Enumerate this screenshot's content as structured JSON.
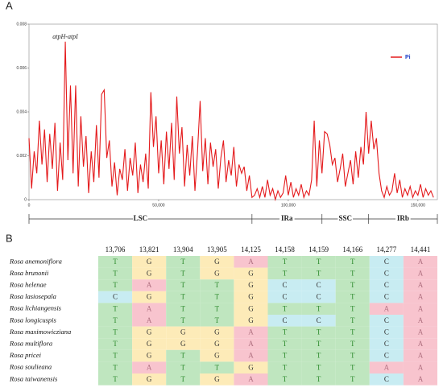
{
  "panels": [
    "A",
    "B"
  ],
  "chart_data": {
    "type": "line",
    "annotation": "atpH-atpI",
    "annotation_x": 14000,
    "xlim": [
      0,
      157500
    ],
    "ylim": [
      0,
      0.008
    ],
    "xticks": [
      0,
      {
        "value": 50000,
        "label": "50,000"
      },
      {
        "value": 100000,
        "label": "100,000"
      },
      {
        "value": 150000,
        "label": "150,000"
      }
    ],
    "yticks": [
      0,
      0.002,
      0.004,
      0.006,
      0.008
    ],
    "legend": "top-right",
    "x": [
      0,
      1000,
      2000,
      3000,
      4000,
      5000,
      6000,
      7000,
      8000,
      9000,
      10000,
      11000,
      12000,
      13000,
      14000,
      15000,
      16000,
      17000,
      18000,
      19000,
      20000,
      21000,
      22000,
      23000,
      24000,
      25000,
      26000,
      27000,
      28000,
      29000,
      30000,
      31000,
      32000,
      33000,
      34000,
      35000,
      36000,
      37000,
      38000,
      39000,
      40000,
      41000,
      42000,
      43000,
      44000,
      45000,
      46000,
      47000,
      48000,
      49000,
      50000,
      51000,
      52000,
      53000,
      54000,
      55000,
      56000,
      57000,
      58000,
      59000,
      60000,
      61000,
      62000,
      63000,
      64000,
      65000,
      66000,
      67000,
      68000,
      69000,
      70000,
      71000,
      72000,
      73000,
      74000,
      75000,
      76000,
      77000,
      78000,
      79000,
      80000,
      81000,
      82000,
      83000,
      84000,
      85000,
      86000,
      87000,
      88000,
      89000,
      90000,
      91000,
      92000,
      93000,
      94000,
      95000,
      96000,
      97000,
      98000,
      99000,
      100000,
      101000,
      102000,
      103000,
      104000,
      105000,
      106000,
      107000,
      108000,
      109000,
      110000,
      111000,
      112000,
      113000,
      114000,
      115000,
      116000,
      117000,
      118000,
      119000,
      120000,
      121000,
      122000,
      123000,
      124000,
      125000,
      126000,
      127000,
      128000,
      129000,
      130000,
      131000,
      132000,
      133000,
      134000,
      135000,
      136000,
      137000,
      138000,
      139000,
      140000,
      141000,
      142000,
      143000,
      144000,
      145000,
      146000,
      147000,
      148000,
      149000,
      150000,
      151000,
      152000,
      153000,
      154000,
      155000,
      156000
    ],
    "series": [
      {
        "name": "Pi",
        "color": "#e41a1c",
        "values": [
          0.0028,
          0.0005,
          0.0022,
          0.0012,
          0.0036,
          0.0016,
          0.0032,
          0.0008,
          0.003,
          0.0014,
          0.0035,
          0.0004,
          0.0026,
          0.0009,
          0.0072,
          0.0018,
          0.0052,
          0.0012,
          0.0052,
          0.0006,
          0.0038,
          0.0015,
          0.0029,
          0.0003,
          0.0022,
          0.0008,
          0.0034,
          0.001,
          0.0048,
          0.005,
          0.0019,
          0.0027,
          0.0006,
          0.0017,
          0.0002,
          0.0014,
          0.0009,
          0.0023,
          0.0004,
          0.0019,
          0.0011,
          0.0026,
          0.0003,
          0.0016,
          0.0008,
          0.0021,
          0.0005,
          0.0049,
          0.0024,
          0.0038,
          0.0012,
          0.0027,
          0.0007,
          0.0031,
          0.0014,
          0.0035,
          0.0009,
          0.0047,
          0.0021,
          0.0033,
          0.0006,
          0.0025,
          0.0011,
          0.0029,
          0.0004,
          0.0022,
          0.0045,
          0.0013,
          0.0028,
          0.0007,
          0.0026,
          0.0015,
          0.0023,
          0.0005,
          0.0019,
          0.0027,
          0.0008,
          0.0018,
          0.0011,
          0.0024,
          0.0006,
          0.0016,
          0.0012,
          0.0015,
          0.0004,
          0.0011,
          0.0001,
          0.0002,
          0.0005,
          0.0001,
          0.0006,
          0.0001,
          0.0009,
          0.0002,
          0.0005,
          0,
          0.0004,
          0.0001,
          0.0003,
          0.0011,
          0.0002,
          0.0008,
          0.0001,
          0.0005,
          0.0002,
          0.0007,
          0.0001,
          0.0004,
          0.0002,
          0.0009,
          0.0036,
          0.0006,
          0.0027,
          0.0012,
          0.0031,
          0.003,
          0.0025,
          0.0016,
          0.0019,
          0.0008,
          0.0014,
          0.0021,
          0.0006,
          0.0012,
          0.0018,
          0.0007,
          0.0022,
          0.001,
          0.0024,
          0.0016,
          0.004,
          0.0021,
          0.0036,
          0.0023,
          0.0028,
          0.0012,
          0.0004,
          0.0001,
          0.0006,
          0.0002,
          0.0004,
          0.0012,
          0.0003,
          0.0009,
          0.0001,
          0.0005,
          0.0002,
          0.0006,
          0.0001,
          0.0004,
          0.0002,
          0.0007,
          0.0001,
          0.0005,
          0.0002,
          0.0004,
          0.0001
        ]
      }
    ],
    "regions": [
      {
        "label": "LSC",
        "start": 0,
        "end": 86000
      },
      {
        "label": "IRa",
        "start": 86000,
        "end": 113000
      },
      {
        "label": "SSC",
        "start": 113000,
        "end": 131000
      },
      {
        "label": "IRb",
        "start": 131000,
        "end": 157500
      }
    ]
  },
  "table": {
    "columns": [
      "13,706",
      "13,821",
      "13,904",
      "13,905",
      "14,125",
      "14,158",
      "14,159",
      "14,166",
      "14,277",
      "14,441"
    ],
    "base_colors": {
      "T": "#bfe6bf",
      "G": "#fdebb8",
      "A": "#f8c4ce",
      "C": "#c8ecf2"
    },
    "base_text_colors": {
      "T": "#2e8b2e",
      "G": "#333333",
      "A": "#b07080",
      "C": "#333333"
    },
    "rows": [
      {
        "species": "Rosa anemoniflora",
        "bases": [
          "T",
          "G",
          "T",
          "G",
          "A",
          "T",
          "T",
          "T",
          "C",
          "A"
        ]
      },
      {
        "species": "Rosa brunonii",
        "bases": [
          "T",
          "G",
          "T",
          "G",
          "G",
          "T",
          "T",
          "T",
          "C",
          "A"
        ]
      },
      {
        "species": "Rosa helenae",
        "bases": [
          "T",
          "A",
          "T",
          "T",
          "G",
          "C",
          "C",
          "T",
          "C",
          "A"
        ]
      },
      {
        "species": "Rosa lasiosepala",
        "bases": [
          "C",
          "G",
          "T",
          "T",
          "G",
          "C",
          "C",
          "T",
          "C",
          "A"
        ]
      },
      {
        "species": "Rosa lichiangensis",
        "bases": [
          "T",
          "A",
          "T",
          "T",
          "G",
          "T",
          "T",
          "T",
          "A",
          "A"
        ]
      },
      {
        "species": "Rosa longicuspis",
        "bases": [
          "T",
          "A",
          "T",
          "T",
          "G",
          "C",
          "C",
          "T",
          "C",
          "A"
        ]
      },
      {
        "species": "Rosa maximowicziana",
        "bases": [
          "T",
          "G",
          "G",
          "G",
          "A",
          "T",
          "T",
          "T",
          "C",
          "A"
        ]
      },
      {
        "species": "Rosa multiflora",
        "bases": [
          "T",
          "G",
          "G",
          "G",
          "A",
          "T",
          "T",
          "T",
          "C",
          "A"
        ]
      },
      {
        "species": "Rosa pricei",
        "bases": [
          "T",
          "G",
          "T",
          "G",
          "A",
          "T",
          "T",
          "T",
          "C",
          "A"
        ]
      },
      {
        "species": "Rosa soulieana",
        "bases": [
          "T",
          "A",
          "T",
          "T",
          "G",
          "T",
          "T",
          "T",
          "A",
          "A"
        ]
      },
      {
        "species": "Rosa taiwanensis",
        "bases": [
          "T",
          "G",
          "T",
          "G",
          "A",
          "T",
          "T",
          "T",
          "C",
          "A"
        ]
      }
    ]
  }
}
